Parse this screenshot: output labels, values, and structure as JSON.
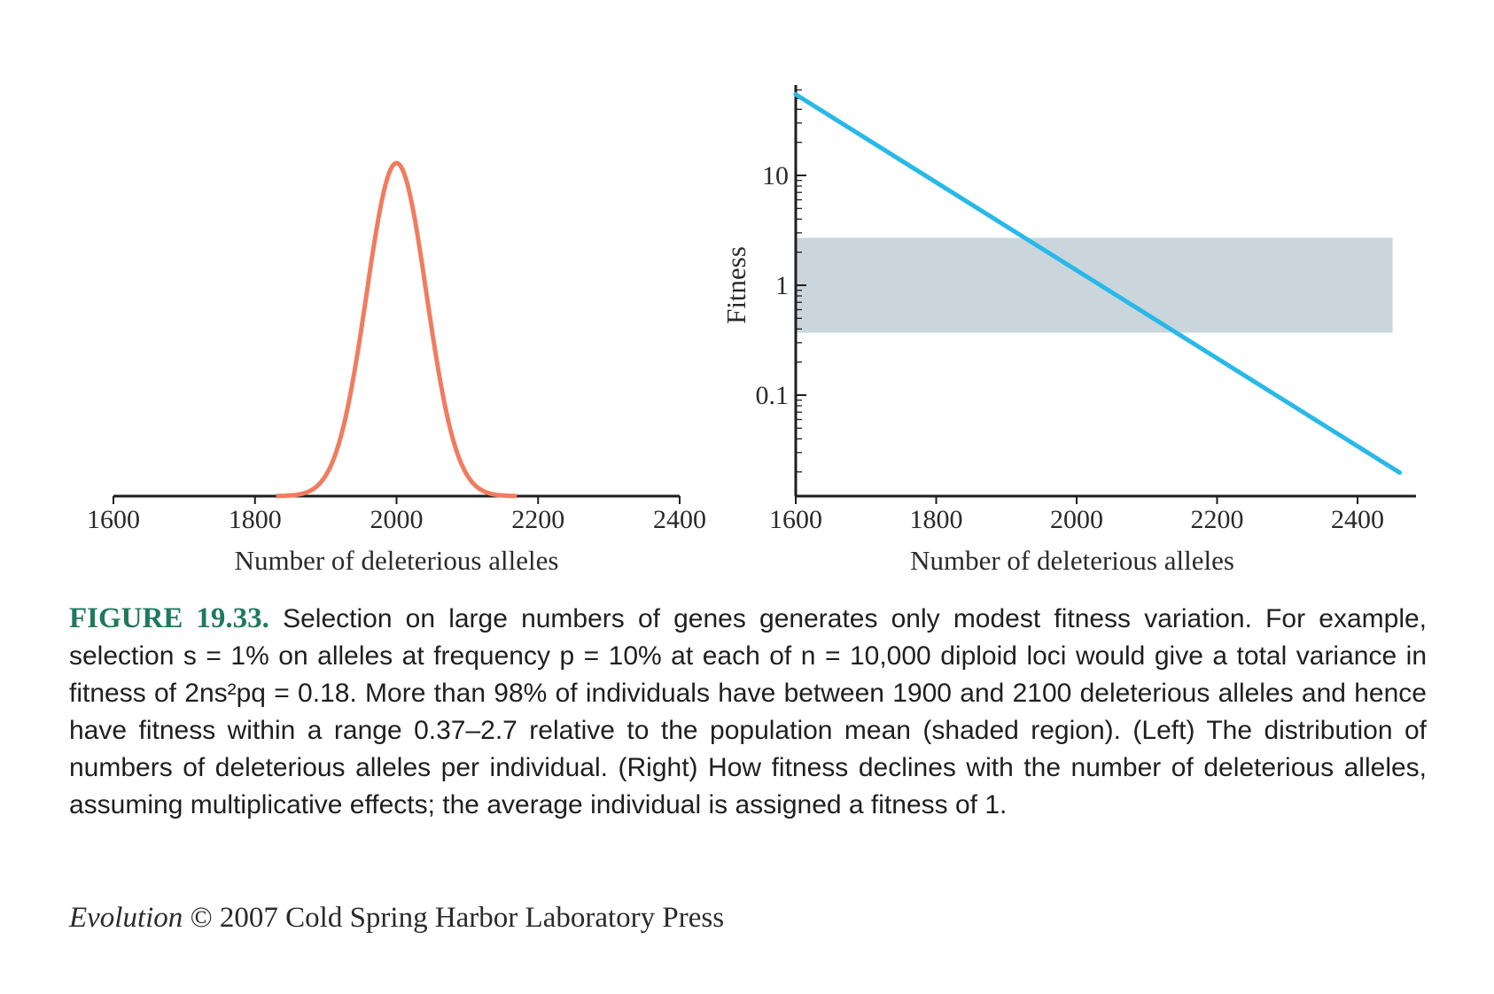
{
  "chart_data": [
    {
      "type": "line",
      "xlabel": "Number of deleterious alleles",
      "ylabel": "",
      "xlim": [
        1600,
        2400
      ],
      "x_ticks": [
        "1600",
        "1800",
        "2000",
        "2200",
        "2400"
      ],
      "y_axis": "none",
      "curve": "normal distribution",
      "series": [
        {
          "mean": 2000,
          "sd": 42.4,
          "peak_height": 1.0,
          "x": [
            1800,
            1850,
            1900,
            1925,
            1950,
            1975,
            2000,
            2025,
            2050,
            2075,
            2100,
            2150,
            2200
          ],
          "y": [
            0.0,
            0.001,
            0.062,
            0.209,
            0.499,
            0.841,
            1.0,
            0.841,
            0.499,
            0.209,
            0.062,
            0.001,
            0.0
          ]
        }
      ],
      "colors": {
        "curve": "#f07c5f",
        "axis": "#1e1e1e"
      }
    },
    {
      "type": "line",
      "scale_y": "log",
      "xlabel": "Number of deleterious alleles",
      "ylabel": "Fitness",
      "xlim": [
        1600,
        2480
      ],
      "ylim": [
        0.01,
        62
      ],
      "x_ticks": [
        "1600",
        "1800",
        "2000",
        "2200",
        "2400"
      ],
      "y_ticks": [
        {
          "value": 0.1,
          "label": "0.1"
        },
        {
          "value": 1,
          "label": "1"
        },
        {
          "value": 10,
          "label": "10"
        }
      ],
      "series": [
        {
          "x": [
            1600,
            2460
          ],
          "y": [
            54.6,
            0.0197
          ]
        }
      ],
      "shaded_region": {
        "x": [
          1600,
          2450
        ],
        "y": [
          0.37,
          2.7
        ]
      },
      "colors": {
        "line": "#29b9e8",
        "shade": "#cad6dc",
        "axis": "#1e1e1e"
      }
    }
  ],
  "caption": {
    "label": "FIGURE 19.33.",
    "text": "Selection on large numbers of genes generates only modest fitness variation. For example, selection s = 1% on alleles at frequency p = 10% at each of n = 10,000 diploid loci would give a total variance in fitness of 2ns²pq = 0.18. More than 98% of individuals have between 1900 and 2100 deleterious alleles and hence have fitness within a range 0.37–2.7 relative to the population mean (shaded region). (Left) The distribution of numbers of deleterious alleles per individual. (Right) How fitness declines with the number of deleterious alleles, assuming multiplicative effects; the average individual is assigned a fitness of 1."
  },
  "credit": {
    "book": "Evolution",
    "rest": " © 2007 Cold Spring Harbor Laboratory Press"
  }
}
